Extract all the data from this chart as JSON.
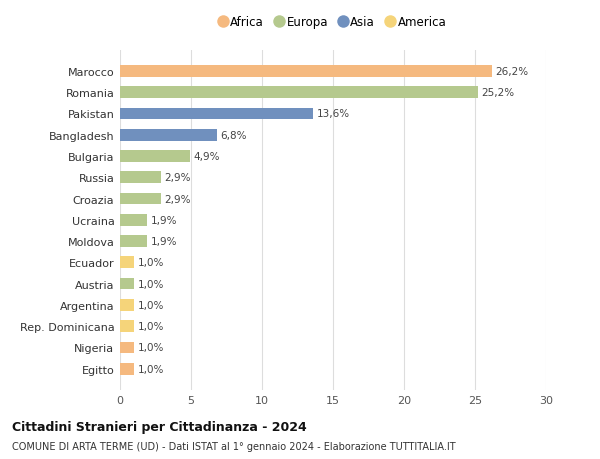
{
  "countries": [
    "Marocco",
    "Romania",
    "Pakistan",
    "Bangladesh",
    "Bulgaria",
    "Russia",
    "Croazia",
    "Ucraina",
    "Moldova",
    "Ecuador",
    "Austria",
    "Argentina",
    "Rep. Dominicana",
    "Nigeria",
    "Egitto"
  ],
  "values": [
    26.2,
    25.2,
    13.6,
    6.8,
    4.9,
    2.9,
    2.9,
    1.9,
    1.9,
    1.0,
    1.0,
    1.0,
    1.0,
    1.0,
    1.0
  ],
  "labels": [
    "26,2%",
    "25,2%",
    "13,6%",
    "6,8%",
    "4,9%",
    "2,9%",
    "2,9%",
    "1,9%",
    "1,9%",
    "1,0%",
    "1,0%",
    "1,0%",
    "1,0%",
    "1,0%",
    "1,0%"
  ],
  "continents": [
    "Africa",
    "Europa",
    "Asia",
    "Asia",
    "Europa",
    "Europa",
    "Europa",
    "Europa",
    "Europa",
    "America",
    "Europa",
    "America",
    "America",
    "Africa",
    "Africa"
  ],
  "colors": {
    "Africa": "#F5B97F",
    "Europa": "#B5C98E",
    "Asia": "#7090BE",
    "America": "#F5D47A"
  },
  "legend_order": [
    "Africa",
    "Europa",
    "Asia",
    "America"
  ],
  "title": "Cittadini Stranieri per Cittadinanza - 2024",
  "subtitle": "COMUNE DI ARTA TERME (UD) - Dati ISTAT al 1° gennaio 2024 - Elaborazione TUTTITALIA.IT",
  "xlim": [
    0,
    30
  ],
  "xticks": [
    0,
    5,
    10,
    15,
    20,
    25,
    30
  ],
  "background_color": "#ffffff",
  "grid_color": "#dddddd"
}
